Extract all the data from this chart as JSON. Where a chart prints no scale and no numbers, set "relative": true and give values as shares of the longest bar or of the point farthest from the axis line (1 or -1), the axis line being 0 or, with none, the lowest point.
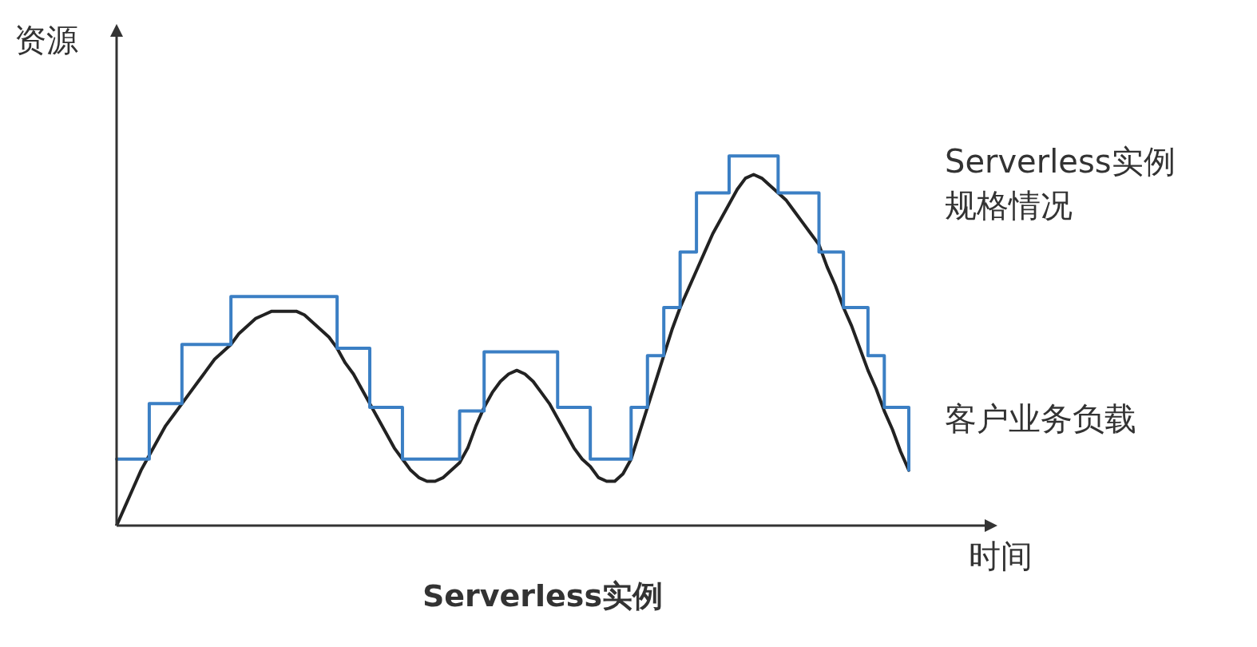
{
  "chart_data": {
    "type": "line",
    "title": "Serverless实例",
    "xlabel": "时间",
    "ylabel": "资源",
    "relative": true,
    "legend": false,
    "marker": "none",
    "categories": [
      null,
      null,
      null,
      null,
      null,
      null,
      null,
      null,
      null,
      null,
      null,
      null,
      null,
      null,
      null,
      null,
      null,
      null,
      null,
      null,
      null,
      null,
      null,
      null,
      null,
      null,
      null,
      null,
      null,
      null,
      null,
      null,
      null,
      null,
      null,
      null,
      null,
      null,
      null,
      null,
      null,
      null,
      null,
      null,
      null,
      null,
      null,
      null,
      null,
      null,
      null,
      null,
      null,
      null,
      null,
      null,
      null,
      null,
      null,
      null,
      null,
      null,
      null,
      null,
      null,
      null,
      null,
      null,
      null,
      null,
      null,
      null,
      null,
      null,
      null,
      null,
      null,
      null,
      null,
      null,
      null,
      null,
      null,
      null,
      null,
      null,
      null,
      null,
      null,
      null,
      null,
      null,
      null,
      null,
      null,
      null,
      null,
      null
    ],
    "series": [
      {
        "name": "Serverless实例规格情况",
        "type": "step",
        "color": "#3b7fc4",
        "values": [
          0.18,
          0.18,
          0.18,
          0.18,
          0.33,
          0.33,
          0.33,
          0.33,
          0.49,
          0.49,
          0.49,
          0.49,
          0.49,
          0.49,
          0.62,
          0.62,
          0.62,
          0.62,
          0.62,
          0.62,
          0.62,
          0.62,
          0.62,
          0.62,
          0.62,
          0.62,
          0.62,
          0.48,
          0.48,
          0.48,
          0.48,
          0.32,
          0.32,
          0.32,
          0.32,
          0.18,
          0.18,
          0.18,
          0.18,
          0.18,
          0.18,
          0.18,
          0.31,
          0.31,
          0.31,
          0.47,
          0.47,
          0.47,
          0.47,
          0.47,
          0.47,
          0.47,
          0.47,
          0.47,
          0.32,
          0.32,
          0.32,
          0.32,
          0.18,
          0.18,
          0.18,
          0.18,
          0.18,
          0.32,
          0.32,
          0.46,
          0.46,
          0.59,
          0.59,
          0.74,
          0.74,
          0.9,
          0.9,
          0.9,
          0.9,
          1,
          1,
          1,
          1,
          1,
          1,
          0.9,
          0.9,
          0.9,
          0.9,
          0.9,
          0.74,
          0.74,
          0.74,
          0.59,
          0.59,
          0.59,
          0.46,
          0.46,
          0.32,
          0.32,
          0.32,
          0.15
        ]
      },
      {
        "name": "客户业务负载",
        "type": "line",
        "color": "#222222",
        "values": [
          0,
          0.05,
          0.1,
          0.15,
          0.19,
          0.23,
          0.27,
          0.3,
          0.33,
          0.36,
          0.39,
          0.42,
          0.45,
          0.47,
          0.49,
          0.52,
          0.54,
          0.56,
          0.57,
          0.58,
          0.58,
          0.58,
          0.58,
          0.57,
          0.55,
          0.53,
          0.51,
          0.48,
          0.44,
          0.41,
          0.37,
          0.33,
          0.29,
          0.25,
          0.21,
          0.18,
          0.15,
          0.13,
          0.12,
          0.12,
          0.13,
          0.15,
          0.17,
          0.21,
          0.27,
          0.32,
          0.36,
          0.39,
          0.41,
          0.42,
          0.41,
          0.39,
          0.36,
          0.33,
          0.29,
          0.25,
          0.21,
          0.18,
          0.16,
          0.13,
          0.12,
          0.12,
          0.14,
          0.18,
          0.25,
          0.32,
          0.39,
          0.46,
          0.53,
          0.59,
          0.64,
          0.69,
          0.74,
          0.79,
          0.83,
          0.87,
          0.91,
          0.94,
          0.95,
          0.94,
          0.92,
          0.9,
          0.88,
          0.85,
          0.82,
          0.79,
          0.76,
          0.7,
          0.65,
          0.59,
          0.54,
          0.48,
          0.42,
          0.37,
          0.31,
          0.26,
          0.2,
          0.15
        ]
      }
    ]
  }
}
